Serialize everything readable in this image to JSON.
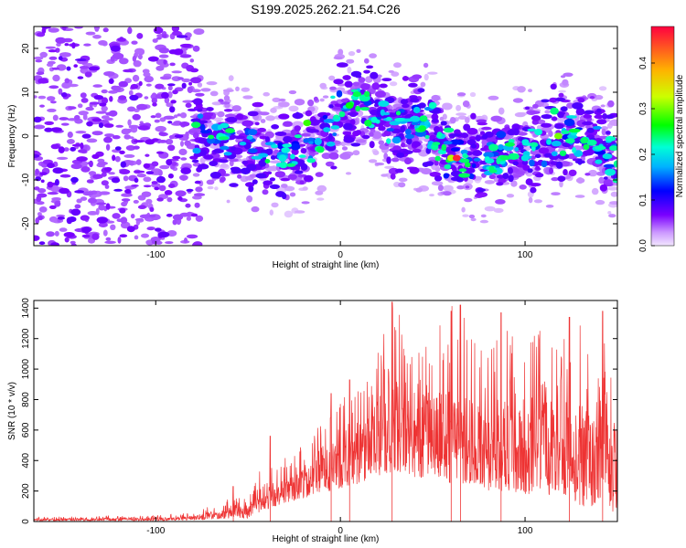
{
  "title": "S199.2025.262.21.54.C26",
  "chart_data": [
    {
      "type": "heatmap",
      "xlabel": "Height of straight line (km)",
      "ylabel": "Frequency (Hz)",
      "xlim": [
        -166,
        150
      ],
      "ylim": [
        -25,
        25
      ],
      "xticks": [
        -100,
        0,
        100
      ],
      "yticks": [
        -20,
        -10,
        0,
        10,
        20
      ],
      "colorbar": {
        "label": "Normalized spectral amplitude",
        "range": [
          0,
          0.48
        ],
        "ticks": [
          0.0,
          0.1,
          0.2,
          0.3,
          0.4
        ],
        "tick_labels": [
          "0.0",
          "0.1",
          "0.2",
          "0.3",
          "0.4"
        ],
        "colormap": "rainbow (purple → red)"
      },
      "ridge": {
        "x": [
          -166,
          -100,
          -80,
          -60,
          -45,
          -30,
          -15,
          0,
          10,
          20,
          28,
          35,
          45,
          55,
          70,
          85,
          100,
          115,
          130,
          150
        ],
        "y": [
          0,
          0,
          0,
          -1,
          -3,
          -6,
          -2,
          5,
          7,
          5,
          1,
          3,
          2,
          -3,
          -5,
          -5,
          -3,
          -1,
          0,
          -5
        ]
      }
    },
    {
      "type": "line",
      "xlabel": "Height of straight line (km)",
      "ylabel": "SNR (10 * v/v)",
      "xlim": [
        -166,
        150
      ],
      "ylim": [
        0,
        1450
      ],
      "xticks": [
        -100,
        0,
        100
      ],
      "yticks": [
        0,
        200,
        400,
        600,
        800,
        1000,
        1200,
        1400
      ],
      "color": "#ee3333",
      "envelope": {
        "x": [
          -166,
          -100,
          -80,
          -60,
          -50,
          -45,
          -40,
          -35,
          -30,
          -20,
          -10,
          0,
          10,
          20,
          30,
          40,
          50,
          60,
          70,
          80,
          90,
          100,
          110,
          120,
          130,
          140,
          150
        ],
        "upper": [
          30,
          40,
          60,
          150,
          180,
          330,
          380,
          350,
          420,
          500,
          650,
          800,
          900,
          1200,
          1450,
          1100,
          1250,
          1420,
          1300,
          1150,
          1300,
          1100,
          1350,
          1200,
          1300,
          1250,
          1050
        ],
        "lower": [
          5,
          5,
          10,
          20,
          20,
          50,
          80,
          100,
          120,
          150,
          200,
          200,
          250,
          300,
          330,
          280,
          300,
          250,
          250,
          200,
          200,
          180,
          150,
          180,
          100,
          100,
          50
        ]
      },
      "peaks": [
        {
          "x": -58,
          "y": 230
        },
        {
          "x": -38,
          "y": 560
        },
        {
          "x": -5,
          "y": 840
        },
        {
          "x": 5,
          "y": 930
        },
        {
          "x": 28,
          "y": 1440
        },
        {
          "x": 60,
          "y": 1380
        },
        {
          "x": 65,
          "y": 1420
        },
        {
          "x": 87,
          "y": 1370
        },
        {
          "x": 124,
          "y": 1340
        },
        {
          "x": 142,
          "y": 1380
        }
      ]
    }
  ]
}
